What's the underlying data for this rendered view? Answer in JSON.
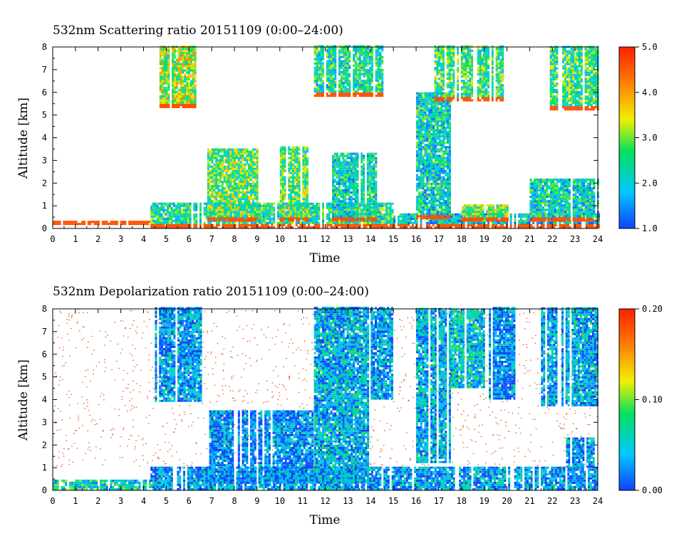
{
  "chart_data": [
    {
      "type": "heatmap",
      "title": "532nm Scattering ratio  20151109 (0:00–24:00)",
      "xlabel": "Time",
      "ylabel": "Altitude [km]",
      "xlim": [
        0,
        24
      ],
      "ylim": [
        0,
        8
      ],
      "x_ticks": [
        "0",
        "1",
        "2",
        "3",
        "4",
        "5",
        "6",
        "7",
        "8",
        "9",
        "10",
        "11",
        "12",
        "13",
        "14",
        "15",
        "16",
        "17",
        "18",
        "19",
        "20",
        "21",
        "22",
        "23",
        "24"
      ],
      "y_ticks": [
        "0",
        "1",
        "2",
        "3",
        "4",
        "5",
        "6",
        "7",
        "8"
      ],
      "colorbar": {
        "min": 1.0,
        "max": 5.0,
        "ticks": [
          "1.0",
          "2.0",
          "3.0",
          "4.0",
          "5.0"
        ]
      },
      "colormap": [
        "#1040ff",
        "#00c8ff",
        "#00e060",
        "#f0f000",
        "#ff8000",
        "#ff2000"
      ]
    },
    {
      "type": "heatmap",
      "title": "532nm Depolarization ratio  20151109 (0:00–24:00)",
      "xlabel": "Time",
      "ylabel": "Altitude [km]",
      "xlim": [
        0,
        24
      ],
      "ylim": [
        0,
        8
      ],
      "x_ticks": [
        "0",
        "1",
        "2",
        "3",
        "4",
        "5",
        "6",
        "7",
        "8",
        "9",
        "10",
        "11",
        "12",
        "13",
        "14",
        "15",
        "16",
        "17",
        "18",
        "19",
        "20",
        "21",
        "22",
        "23",
        "24"
      ],
      "y_ticks": [
        "0",
        "1",
        "2",
        "3",
        "4",
        "5",
        "6",
        "7",
        "8"
      ],
      "colorbar": {
        "min": 0.0,
        "max": 0.2,
        "ticks": [
          "0.00",
          "0.10",
          "0.20"
        ]
      },
      "colormap": [
        "#1040ff",
        "#00c8ff",
        "#00e060",
        "#f0f000",
        "#ff8000",
        "#ff2000"
      ]
    }
  ]
}
